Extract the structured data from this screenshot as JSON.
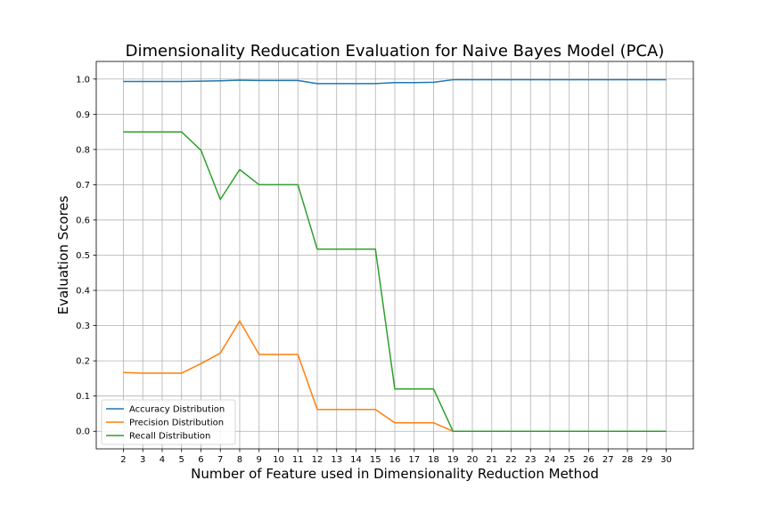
{
  "chart_data": {
    "type": "line",
    "title": "Dimensionality Reducation Evaluation for Naive Bayes Model (PCA)",
    "xlabel": "Number of Feature used in Dimensionality Reduction Method",
    "ylabel": "Evaluation Scores",
    "x": [
      2,
      3,
      4,
      5,
      6,
      7,
      8,
      9,
      10,
      11,
      12,
      13,
      14,
      15,
      16,
      17,
      18,
      19,
      20,
      21,
      22,
      23,
      24,
      25,
      26,
      27,
      28,
      29,
      30
    ],
    "xlim": [
      0.6,
      31.4
    ],
    "ylim": [
      -0.05,
      1.05
    ],
    "yticks": [
      "0.0",
      "0.1",
      "0.2",
      "0.3",
      "0.4",
      "0.5",
      "0.6",
      "0.7",
      "0.8",
      "0.9",
      "1.0"
    ],
    "xticks": [
      "2",
      "3",
      "4",
      "5",
      "6",
      "7",
      "8",
      "9",
      "10",
      "11",
      "12",
      "13",
      "14",
      "15",
      "16",
      "17",
      "18",
      "19",
      "20",
      "21",
      "22",
      "23",
      "24",
      "25",
      "26",
      "27",
      "28",
      "29",
      "30"
    ],
    "grid": true,
    "legend_position": "lower-left",
    "series": [
      {
        "name": "Accuracy Distribution",
        "color": "#1f77b4",
        "values": [
          0.993,
          0.993,
          0.993,
          0.993,
          0.994,
          0.995,
          0.997,
          0.996,
          0.996,
          0.996,
          0.987,
          0.987,
          0.987,
          0.987,
          0.99,
          0.99,
          0.991,
          0.998,
          0.998,
          0.998,
          0.998,
          0.998,
          0.998,
          0.998,
          0.998,
          0.998,
          0.998,
          0.998,
          0.998
        ]
      },
      {
        "name": "Precision Distribution",
        "color": "#ff7f0e",
        "values": [
          0.167,
          0.165,
          0.165,
          0.165,
          0.192,
          0.222,
          0.313,
          0.218,
          0.218,
          0.218,
          0.062,
          0.062,
          0.062,
          0.062,
          0.024,
          0.024,
          0.024,
          0.0,
          0.0,
          0.0,
          0.0,
          0.0,
          0.0,
          0.0,
          0.0,
          0.0,
          0.0,
          0.0,
          0.0
        ]
      },
      {
        "name": "Recall Distribution",
        "color": "#2ca02c",
        "values": [
          0.85,
          0.85,
          0.85,
          0.85,
          0.798,
          0.658,
          0.743,
          0.7,
          0.7,
          0.7,
          0.517,
          0.517,
          0.517,
          0.517,
          0.12,
          0.12,
          0.12,
          0.0,
          0.0,
          0.0,
          0.0,
          0.0,
          0.0,
          0.0,
          0.0,
          0.0,
          0.0,
          0.0,
          0.0
        ]
      }
    ]
  }
}
